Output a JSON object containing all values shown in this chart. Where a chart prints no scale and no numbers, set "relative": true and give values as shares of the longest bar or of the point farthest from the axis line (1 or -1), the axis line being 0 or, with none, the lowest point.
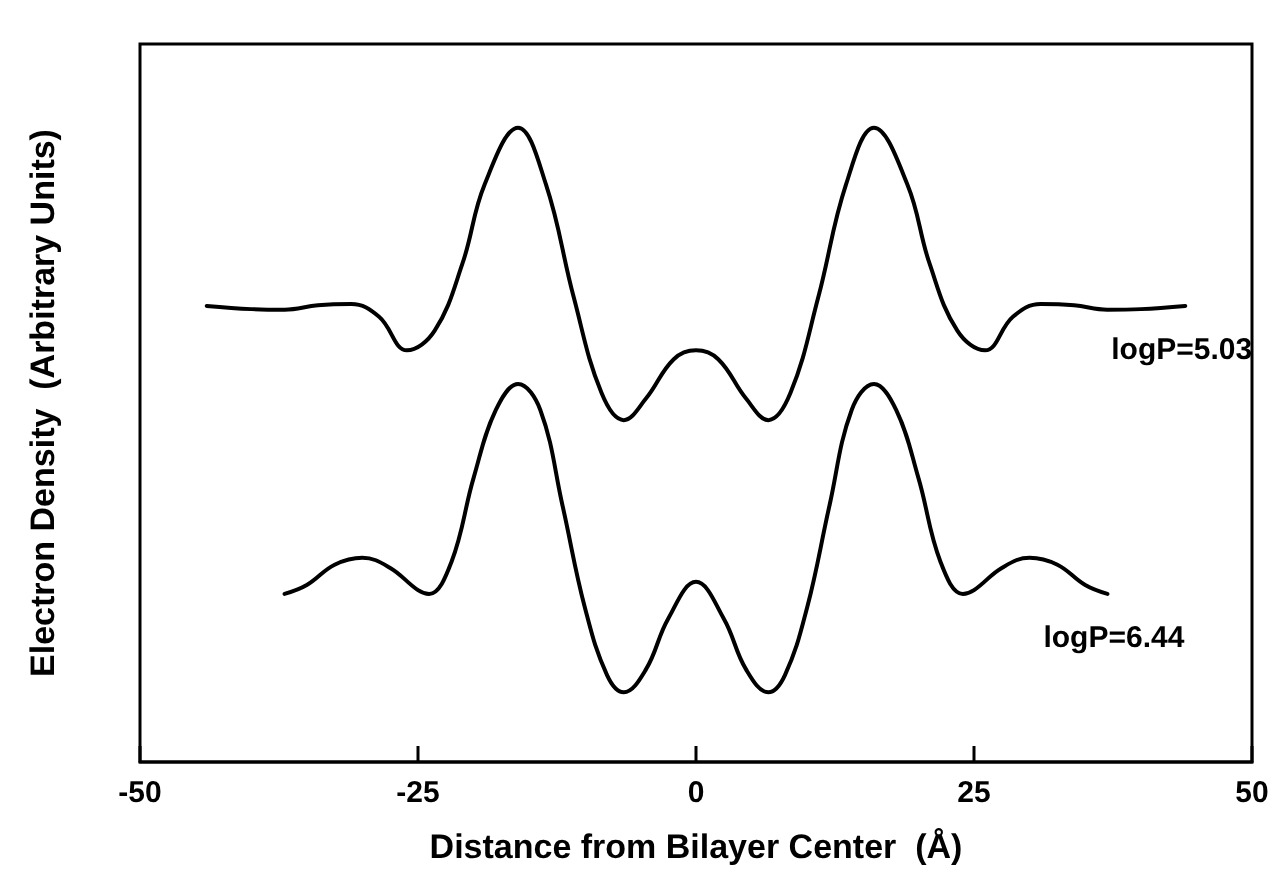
{
  "chart_data": {
    "type": "line",
    "relative": true,
    "xlabel": "Distance from Bilayer Center  (Å)",
    "ylabel": "Electron Density  (Arbitrary Units)",
    "xlim": [
      -50,
      50
    ],
    "xticks": [
      -50,
      -25,
      0,
      25,
      50
    ],
    "grid": false,
    "legend": false,
    "marker": "none",
    "line_style": "solid",
    "series": [
      {
        "name": "logP=5.03",
        "color": "#000000",
        "x": [
          -44,
          -40,
          -37,
          -34,
          -31,
          -28.5,
          -26,
          -23.5,
          -21,
          -19,
          -16,
          -13.5,
          -11,
          -8.5,
          -6.5,
          -4.5,
          -2,
          0,
          2,
          4.5,
          6.5,
          8.5,
          11,
          13.5,
          16,
          19,
          21,
          23.5,
          26,
          28.5,
          31,
          34,
          37,
          40,
          44
        ],
        "values": [
          0.719,
          0.714,
          0.713,
          0.72,
          0.722,
          0.702,
          0.649,
          0.68,
          0.786,
          0.911,
          1,
          0.911,
          0.733,
          0.582,
          0.539,
          0.573,
          0.635,
          0.649,
          0.635,
          0.573,
          0.539,
          0.582,
          0.733,
          0.911,
          1,
          0.911,
          0.786,
          0.68,
          0.649,
          0.702,
          0.722,
          0.72,
          0.713,
          0.714,
          0.719
        ]
      },
      {
        "name": "logP=6.44",
        "color": "#000000",
        "x": [
          -37,
          -35,
          -32.5,
          -30,
          -27.5,
          -25,
          -24,
          -22,
          -20,
          -18,
          -16,
          -14,
          -12,
          -10,
          -8,
          -6.5,
          -4.5,
          -2.5,
          0,
          2.5,
          4.5,
          6.5,
          8,
          10,
          12,
          14,
          16,
          18,
          20,
          22,
          24,
          25,
          27.5,
          30,
          32.5,
          35,
          37
        ],
        "values": [
          0.265,
          0.279,
          0.311,
          0.322,
          0.306,
          0.271,
          0.265,
          0.315,
          0.448,
          0.555,
          0.596,
          0.555,
          0.404,
          0.244,
          0.137,
          0.11,
          0.146,
          0.226,
          0.284,
          0.226,
          0.146,
          0.11,
          0.137,
          0.244,
          0.404,
          0.555,
          0.596,
          0.555,
          0.448,
          0.315,
          0.265,
          0.271,
          0.306,
          0.322,
          0.311,
          0.279,
          0.265
        ]
      }
    ]
  }
}
